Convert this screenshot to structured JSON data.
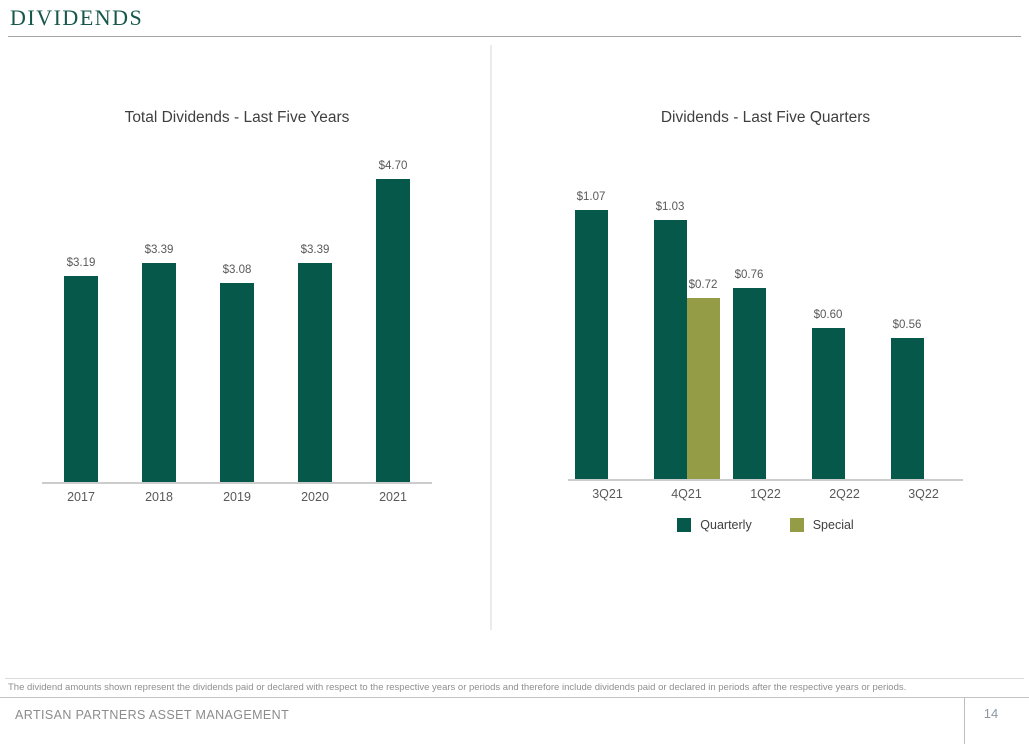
{
  "page": {
    "title": "DIVIDENDS",
    "footnote": "The dividend amounts shown represent the dividends paid or declared with respect to the respective years or periods and therefore include dividends paid or declared in periods after the respective years or periods.",
    "footer": {
      "company": "ARTISAN PARTNERS ASSET MANAGEMENT",
      "page_number": "14"
    }
  },
  "colors": {
    "quarterly": "#05584A",
    "special": "#959C46",
    "title_green": "#17574B",
    "chart_title_text": "#3F3F3F",
    "label_text": "#595959",
    "axis_line": "#CCCCCC",
    "footer_text": "#8C8C8C"
  },
  "chart_data": [
    {
      "id": "total-dividends-last-five-years",
      "type": "bar",
      "title": "Total Dividends - Last Five Years",
      "categories": [
        "2017",
        "2018",
        "2019",
        "2020",
        "2021"
      ],
      "values": [
        3.19,
        3.39,
        3.08,
        3.39,
        4.7
      ],
      "data_labels": [
        "$3.19",
        "$3.39",
        "$3.08",
        "$3.39",
        "$4.70"
      ],
      "xlabel": "",
      "ylabel": "",
      "ylim": [
        0,
        5
      ],
      "grid": false,
      "legend": null
    },
    {
      "id": "dividends-last-five-quarters",
      "type": "bar",
      "title": "Dividends - Last Five Quarters",
      "categories": [
        "3Q21",
        "4Q21",
        "1Q22",
        "2Q22",
        "3Q22"
      ],
      "series": [
        {
          "name": "Quarterly",
          "color_key": "quarterly",
          "values": [
            1.07,
            1.03,
            0.76,
            0.6,
            0.56
          ],
          "data_labels": [
            "$1.07",
            "$1.03",
            "$0.76",
            "$0.60",
            "$0.56"
          ]
        },
        {
          "name": "Special",
          "color_key": "special",
          "values": [
            null,
            0.72,
            null,
            null,
            null
          ],
          "data_labels": [
            null,
            "$0.72",
            null,
            null,
            null
          ]
        }
      ],
      "xlabel": "",
      "ylabel": "",
      "ylim": [
        0,
        1.2
      ],
      "grid": false,
      "legend": {
        "position": "bottom",
        "entries": [
          {
            "label": "Quarterly",
            "color_key": "quarterly"
          },
          {
            "label": "Special",
            "color_key": "special"
          }
        ]
      }
    }
  ]
}
